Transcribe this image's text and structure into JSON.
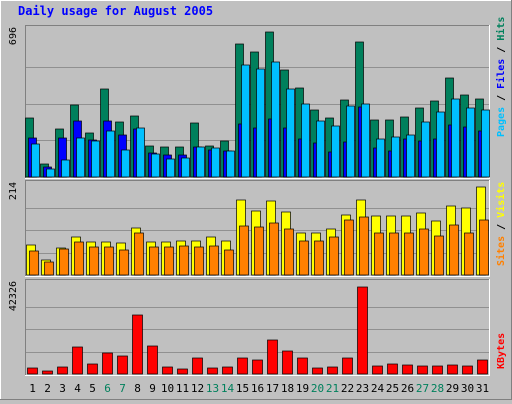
{
  "title": "Daily usage for August 2005",
  "colors": {
    "background": "#c0c0c0",
    "plot_background": "#c0c0c0",
    "title": "#0000ff",
    "hits": "#00805c",
    "files": "#0000ff",
    "pages": "#00c0ff",
    "visits": "#ffff00",
    "sites": "#ff8000",
    "kbytes": "#ff0000",
    "weekend_label": "#00805c",
    "weekday_label": "#000000"
  },
  "chart_data": [
    {
      "type": "bar",
      "panel": "hits-files-pages",
      "ymax_label": "696",
      "ymax": 696,
      "right_labels": [
        "Pages",
        "Files",
        "Hits"
      ],
      "categories": [
        "1",
        "2",
        "3",
        "4",
        "5",
        "6",
        "7",
        "8",
        "9",
        "10",
        "11",
        "12",
        "13",
        "14",
        "15",
        "16",
        "17",
        "18",
        "19",
        "20",
        "21",
        "22",
        "23",
        "24",
        "25",
        "26",
        "27",
        "28",
        "29",
        "30",
        "31"
      ],
      "series": [
        {
          "name": "Hits",
          "values": [
            280,
            60,
            225,
            340,
            208,
            415,
            262,
            290,
            145,
            140,
            140,
            255,
            145,
            170,
            630,
            590,
            685,
            505,
            420,
            315,
            280,
            365,
            640,
            270,
            270,
            285,
            325,
            360,
            470,
            390,
            370
          ]
        },
        {
          "name": "Files",
          "values": [
            185,
            45,
            185,
            265,
            175,
            265,
            200,
            225,
            115,
            105,
            105,
            140,
            130,
            125,
            250,
            230,
            275,
            230,
            180,
            160,
            120,
            165,
            330,
            135,
            125,
            180,
            170,
            180,
            245,
            235,
            220
          ]
        },
        {
          "name": "Pages",
          "values": [
            155,
            40,
            80,
            185,
            170,
            220,
            130,
            230,
            110,
            85,
            90,
            140,
            135,
            125,
            530,
            510,
            545,
            415,
            345,
            265,
            240,
            335,
            345,
            180,
            190,
            200,
            260,
            310,
            370,
            325,
            315
          ]
        }
      ]
    },
    {
      "type": "bar",
      "panel": "visits-sites",
      "ymax_label": "214",
      "ymax": 214,
      "right_labels": [
        "Sites",
        "Visits"
      ],
      "categories": [
        "1",
        "2",
        "3",
        "4",
        "5",
        "6",
        "7",
        "8",
        "9",
        "10",
        "11",
        "12",
        "13",
        "14",
        "15",
        "16",
        "17",
        "18",
        "19",
        "20",
        "21",
        "22",
        "23",
        "24",
        "25",
        "26",
        "27",
        "28",
        "29",
        "30",
        "31"
      ],
      "series": [
        {
          "name": "Visits",
          "values": [
            72,
            35,
            65,
            90,
            78,
            78,
            77,
            112,
            78,
            78,
            80,
            80,
            90,
            80,
            178,
            152,
            175,
            150,
            100,
            100,
            110,
            143,
            178,
            140,
            140,
            140,
            148,
            128,
            165,
            160,
            210
          ]
        },
        {
          "name": "Sites",
          "values": [
            56,
            32,
            63,
            78,
            66,
            67,
            60,
            101,
            66,
            67,
            70,
            67,
            70,
            60,
            116,
            115,
            123,
            110,
            80,
            80,
            90,
            130,
            138,
            100,
            100,
            100,
            110,
            93,
            118,
            100,
            130
          ]
        }
      ]
    },
    {
      "type": "bar",
      "panel": "kbytes",
      "ymax_label": "42326",
      "ymax": 42326,
      "right_labels": [
        "KBytes"
      ],
      "categories": [
        "1",
        "2",
        "3",
        "4",
        "5",
        "6",
        "7",
        "8",
        "9",
        "10",
        "11",
        "12",
        "13",
        "14",
        "15",
        "16",
        "17",
        "18",
        "19",
        "20",
        "21",
        "22",
        "23",
        "24",
        "25",
        "26",
        "27",
        "28",
        "29",
        "30",
        "31"
      ],
      "weekend_days": [
        "6",
        "7",
        "13",
        "14",
        "20",
        "21",
        "27",
        "28"
      ],
      "series": [
        {
          "name": "KBytes",
          "values": [
            3000,
            1400,
            3300,
            12500,
            4700,
            9800,
            8700,
            27700,
            13200,
            3300,
            2200,
            7300,
            2800,
            3300,
            7300,
            6400,
            16100,
            11000,
            7300,
            2800,
            3500,
            7300,
            41000,
            3800,
            4800,
            4100,
            3800,
            3800,
            4200,
            3800,
            6500
          ]
        }
      ]
    }
  ]
}
